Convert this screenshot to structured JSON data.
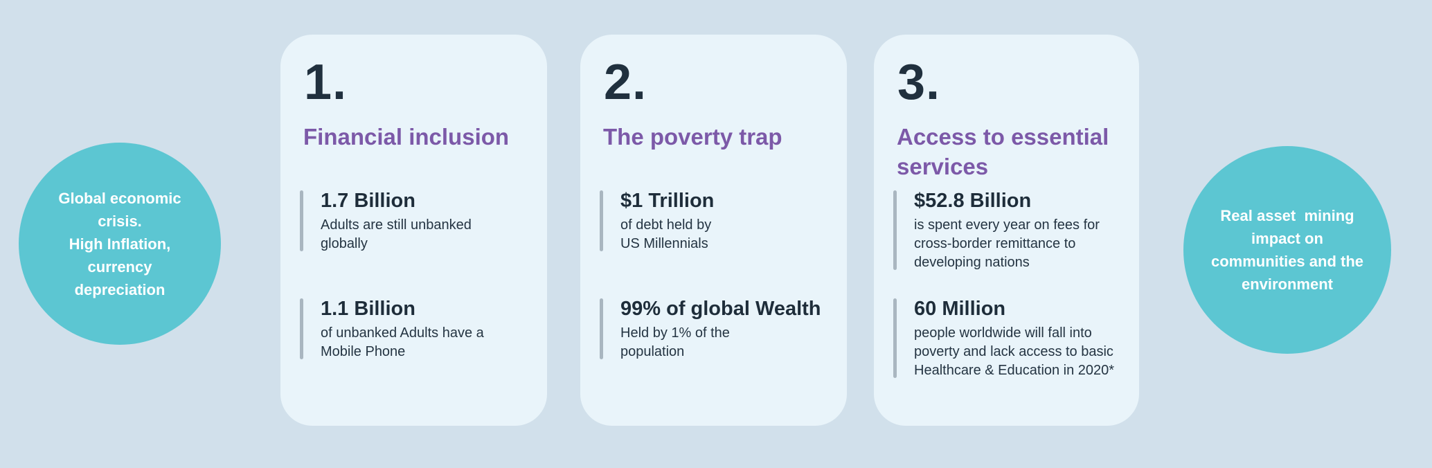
{
  "style": {
    "page_background": "#d1e0eb",
    "card_background": "#e9f4fa",
    "circle_fill": "#5cc6d2",
    "circle_text_color": "#ffffff",
    "heading_color": "#7c59a8",
    "number_color": "#20303e",
    "stat_bar_color": "#a9b6c0"
  },
  "left_circle": {
    "text": "Global economic\ncrisis.\nHigh Inflation,\ncurrency\ndepreciation"
  },
  "right_circle": {
    "text": "Real asset  mining\nimpact on\ncommunities and the\nenvironment"
  },
  "cards": [
    {
      "number": "1.",
      "title": "Financial inclusion",
      "stats": [
        {
          "value": "1.7 Billion",
          "description": "Adults are still unbanked\nglobally"
        },
        {
          "value": "1.1 Billion",
          "description": "of unbanked Adults have a\nMobile Phone"
        }
      ]
    },
    {
      "number": "2.",
      "title": "The poverty trap",
      "stats": [
        {
          "value": "$1 Trillion",
          "description": "of debt held by\nUS Millennials"
        },
        {
          "value": "99% of global Wealth",
          "description": "Held by 1% of the\npopulation"
        }
      ]
    },
    {
      "number": "3.",
      "title": "Access to essential\nservices",
      "stats": [
        {
          "value": "$52.8 Billion",
          "description": "is spent every year on fees for\ncross-border remittance to\ndeveloping nations"
        },
        {
          "value": "60 Million",
          "description": "people worldwide will fall into\npoverty and lack access to basic\nHealthcare & Education in 2020*"
        }
      ]
    }
  ]
}
